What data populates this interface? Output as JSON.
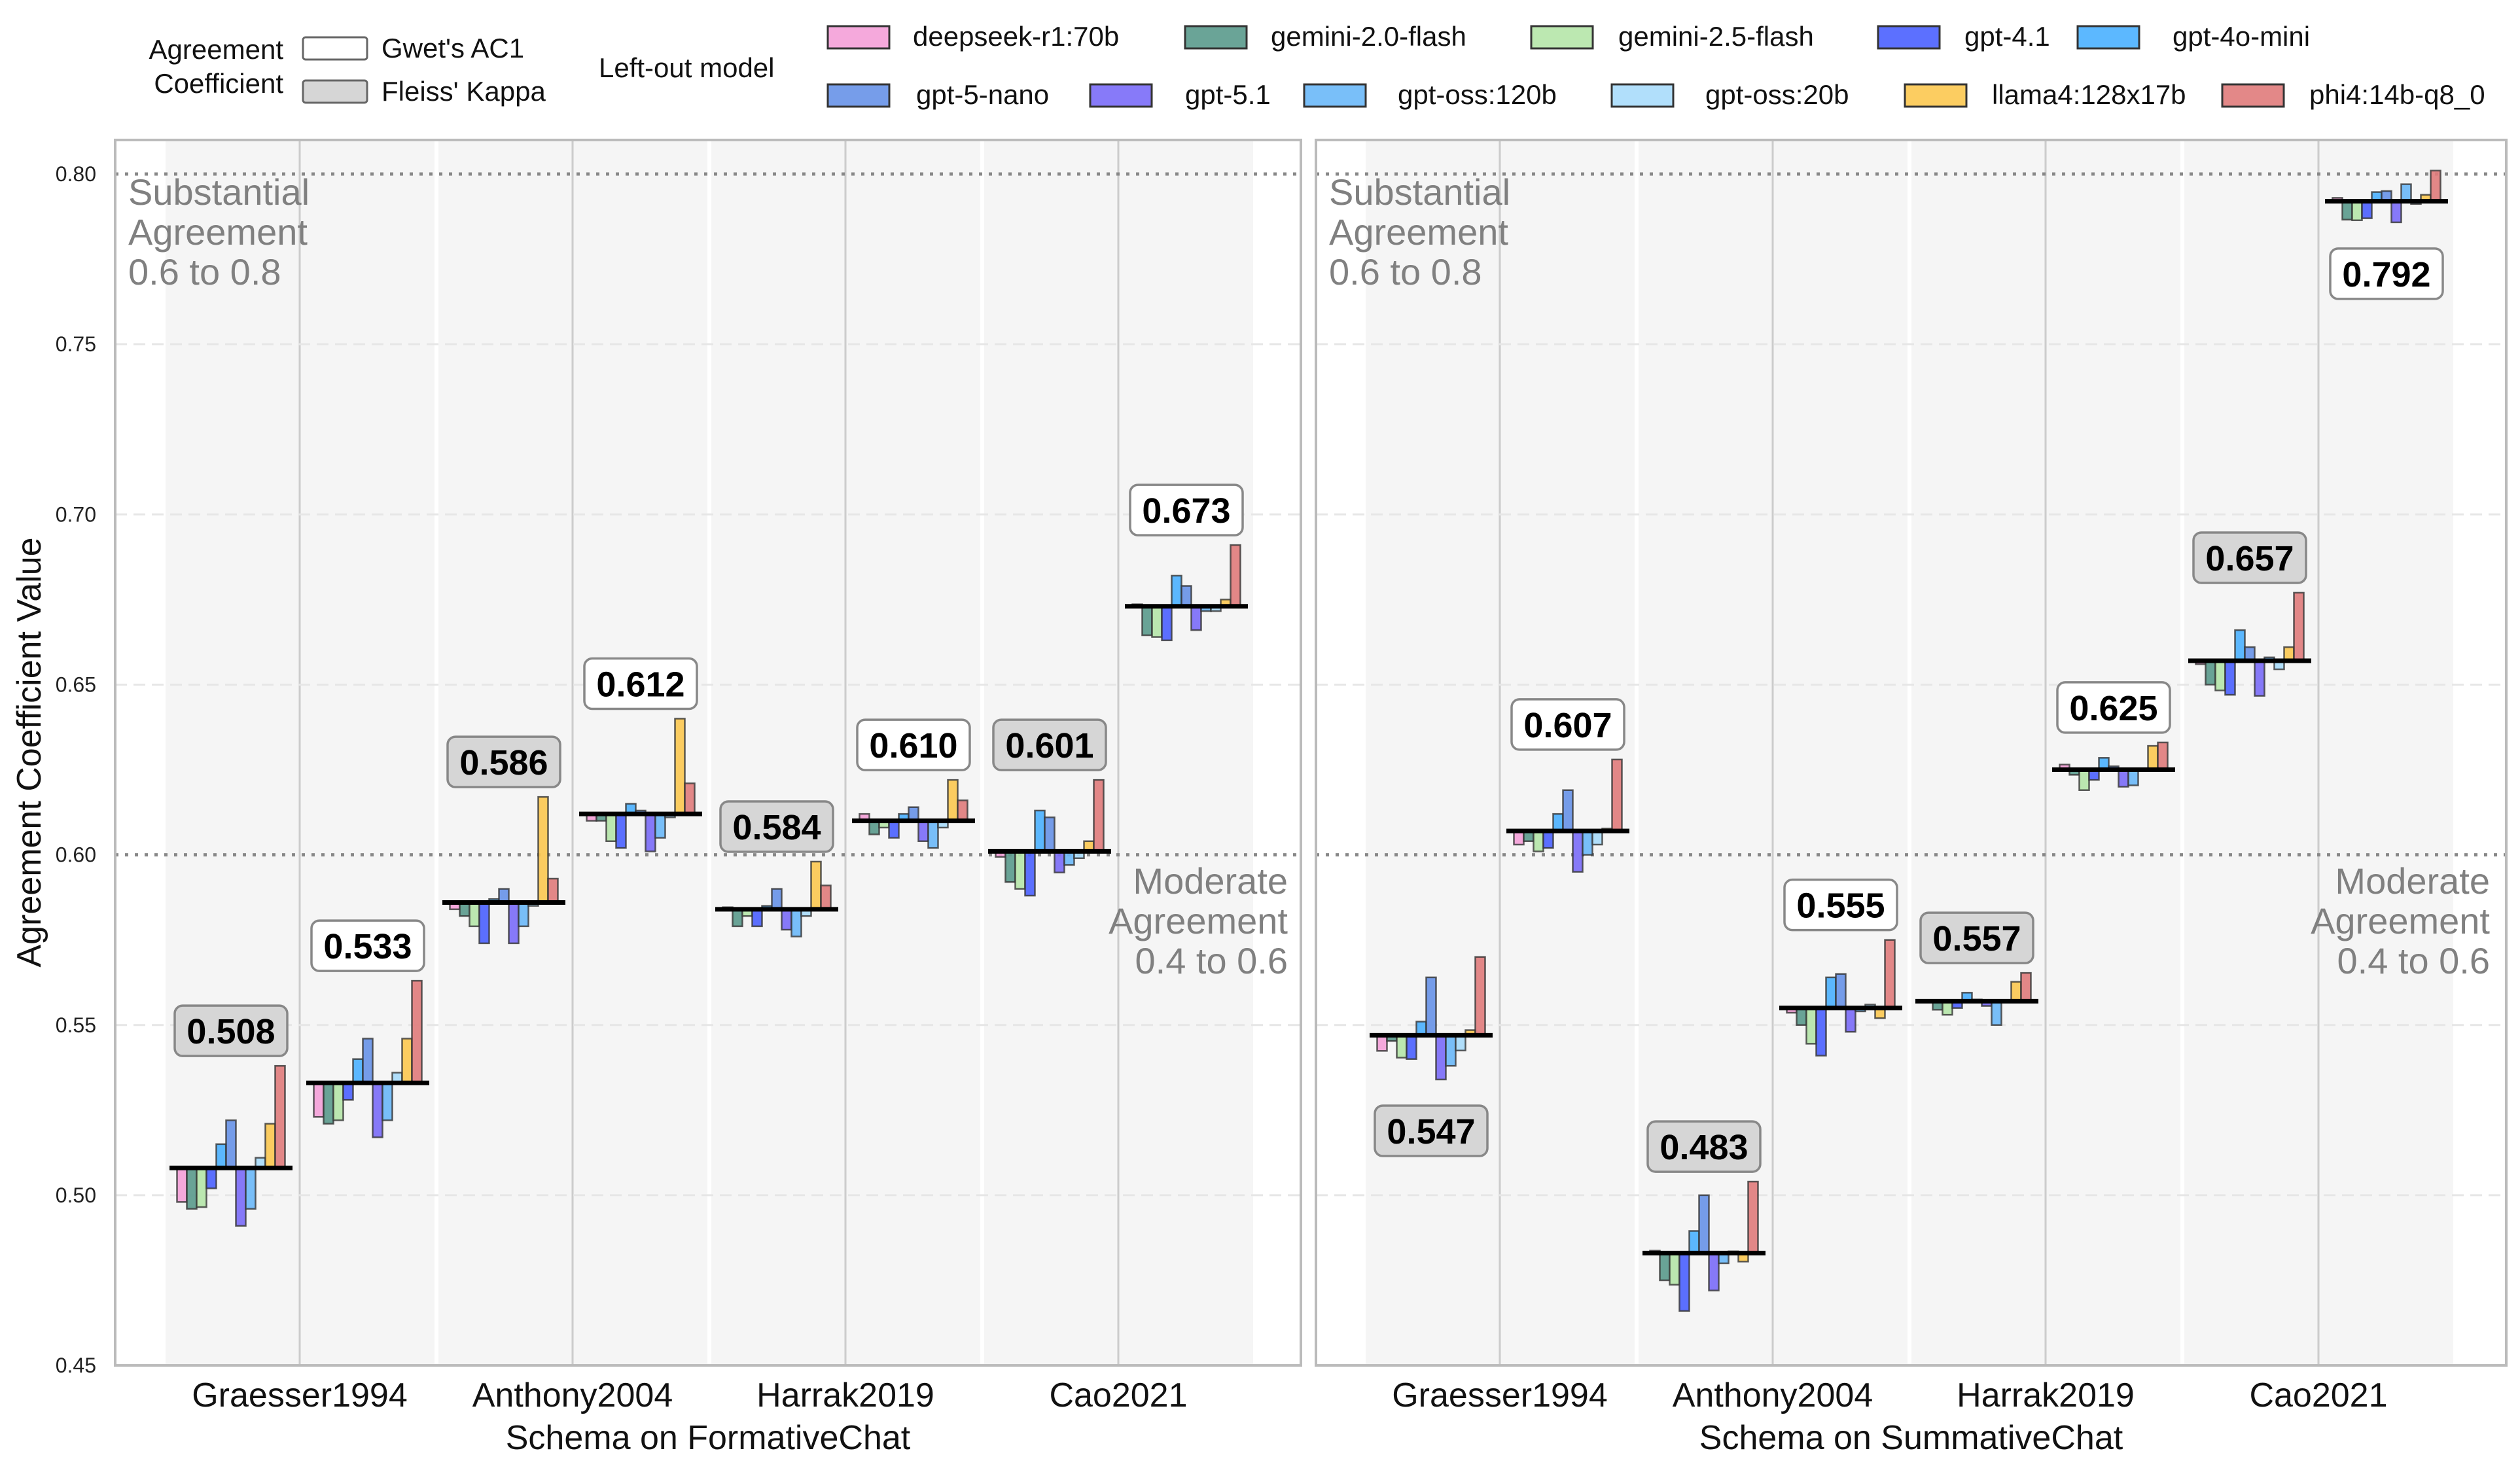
{
  "legend": {
    "coef_title_line1": "Agreement",
    "coef_title_line2": "Coefficient",
    "coef_items": [
      {
        "label": "Gwet's AC1",
        "color": "#ffffff"
      },
      {
        "label": "Fleiss' Kappa",
        "color": "#d6d6d6"
      }
    ],
    "model_title": "Left-out model"
  },
  "chart_data": {
    "type": "bar",
    "title": "",
    "ylabel": "Agreement Coefficient Value",
    "ylim": [
      0.45,
      0.81
    ],
    "yticks": [
      "0.45",
      "0.50",
      "0.55",
      "0.60",
      "0.65",
      "0.70",
      "0.75",
      "0.80"
    ],
    "grid": true,
    "reference_lines": [
      0.6,
      0.8
    ],
    "legend_placement": "top",
    "annotations": {
      "substantial": [
        "Substantial",
        "Agreement",
        "0.6 to 0.8"
      ],
      "moderate": [
        "Moderate",
        "Agreement",
        "0.4 to 0.6"
      ]
    },
    "models": [
      {
        "name": "deepseek-r1:70b",
        "color": "#f4a0d8"
      },
      {
        "name": "gemini-2.0-flash",
        "color": "#5a9a8c"
      },
      {
        "name": "gemini-2.5-flash",
        "color": "#b5e6a8"
      },
      {
        "name": "gpt-4.1",
        "color": "#4a60ff"
      },
      {
        "name": "gpt-4o-mini",
        "color": "#4ab0ff"
      },
      {
        "name": "gpt-5-nano",
        "color": "#6792e8"
      },
      {
        "name": "gpt-5.1",
        "color": "#7a6cf8"
      },
      {
        "name": "gpt-oss:120b",
        "color": "#6ab8f8"
      },
      {
        "name": "gpt-oss:20b",
        "color": "#a8dcfb"
      },
      {
        "name": "llama4:128x17b",
        "color": "#fcc850"
      },
      {
        "name": "phi4:14b-q8_0",
        "color": "#e07b7b"
      }
    ],
    "panels": [
      {
        "xlabel": "Schema on FormativeChat",
        "schemas": [
          {
            "name": "Graesser1994",
            "kappa": {
              "mean": 0.508,
              "label": "0.508",
              "values": [
                0.498,
                0.496,
                0.4965,
                0.502,
                0.515,
                0.522,
                0.491,
                0.496,
                0.511,
                0.521,
                0.538
              ]
            },
            "ac1": {
              "mean": 0.533,
              "label": "0.533",
              "values": [
                0.523,
                0.521,
                0.522,
                0.528,
                0.54,
                0.546,
                0.517,
                0.522,
                0.536,
                0.546,
                0.563
              ]
            }
          },
          {
            "name": "Anthony2004",
            "kappa": {
              "mean": 0.586,
              "label": "0.586",
              "values": [
                0.584,
                0.582,
                0.579,
                0.574,
                0.587,
                0.59,
                0.574,
                0.579,
                0.585,
                0.617,
                0.593
              ]
            },
            "ac1": {
              "mean": 0.612,
              "label": "0.612",
              "values": [
                0.61,
                0.61,
                0.604,
                0.602,
                0.615,
                0.613,
                0.601,
                0.605,
                0.611,
                0.64,
                0.621
              ]
            }
          },
          {
            "name": "Harrak2019",
            "kappa": {
              "mean": 0.584,
              "label": "0.584",
              "values": [
                0.5846,
                0.579,
                0.582,
                0.579,
                0.585,
                0.59,
                0.578,
                0.576,
                0.582,
                0.598,
                0.591
              ]
            },
            "ac1": {
              "mean": 0.61,
              "label": "0.610",
              "values": [
                0.612,
                0.606,
                0.608,
                0.605,
                0.612,
                0.614,
                0.604,
                0.602,
                0.608,
                0.622,
                0.616
              ]
            }
          },
          {
            "name": "Cao2021",
            "kappa": {
              "mean": 0.601,
              "label": "0.601",
              "values": [
                0.5994,
                0.592,
                0.59,
                0.588,
                0.613,
                0.611,
                0.5948,
                0.597,
                0.599,
                0.604,
                0.622
              ]
            },
            "ac1": {
              "mean": 0.673,
              "label": "0.673",
              "values": [
                0.6736,
                0.6645,
                0.664,
                0.663,
                0.682,
                0.679,
                0.666,
                0.6716,
                0.6716,
                0.675,
                0.691
              ]
            }
          }
        ]
      },
      {
        "xlabel": "Schema on SummativeChat",
        "schemas": [
          {
            "name": "Graesser1994",
            "kappa": {
              "mean": 0.547,
              "label": "0.547",
              "values": [
                0.5424,
                0.5453,
                0.5404,
                0.54,
                0.551,
                0.564,
                0.534,
                0.538,
                0.5425,
                0.5485,
                0.57
              ]
            },
            "ac1": {
              "mean": 0.607,
              "label": "0.607",
              "values": [
                0.603,
                0.604,
                0.601,
                0.602,
                0.612,
                0.619,
                0.595,
                0.6,
                0.603,
                0.6077,
                0.628
              ]
            }
          },
          {
            "name": "Anthony2004",
            "kappa": {
              "mean": 0.483,
              "label": "0.483",
              "values": [
                0.4837,
                0.475,
                0.4737,
                0.466,
                0.4895,
                0.5,
                0.472,
                0.48,
                0.4835,
                0.4805,
                0.504
              ]
            },
            "ac1": {
              "mean": 0.555,
              "label": "0.555",
              "values": [
                0.5536,
                0.55,
                0.5445,
                0.541,
                0.564,
                0.565,
                0.548,
                0.554,
                0.556,
                0.552,
                0.575
              ]
            }
          },
          {
            "name": "Harrak2019",
            "kappa": {
              "mean": 0.557,
              "label": "0.557",
              "values": [
                0.5572,
                0.5545,
                0.553,
                0.555,
                0.5595,
                0.5575,
                0.5556,
                0.55,
                0.5567,
                0.5627,
                0.5653
              ]
            },
            "ac1": {
              "mean": 0.625,
              "label": "0.625",
              "values": [
                0.6265,
                0.6235,
                0.619,
                0.622,
                0.6285,
                0.626,
                0.62,
                0.6204,
                0.6247,
                0.632,
                0.633
              ]
            }
          },
          {
            "name": "Cao2021",
            "kappa": {
              "mean": 0.657,
              "label": "0.657",
              "values": [
                0.656,
                0.65,
                0.6483,
                0.647,
                0.666,
                0.661,
                0.6467,
                0.658,
                0.6545,
                0.661,
                0.677
              ]
            },
            "ac1": {
              "mean": 0.792,
              "label": "0.792",
              "values": [
                0.793,
                0.7866,
                0.7864,
                0.787,
                0.7947,
                0.795,
                0.7858,
                0.797,
                0.7912,
                0.7939,
                0.801
              ]
            }
          }
        ]
      }
    ]
  }
}
